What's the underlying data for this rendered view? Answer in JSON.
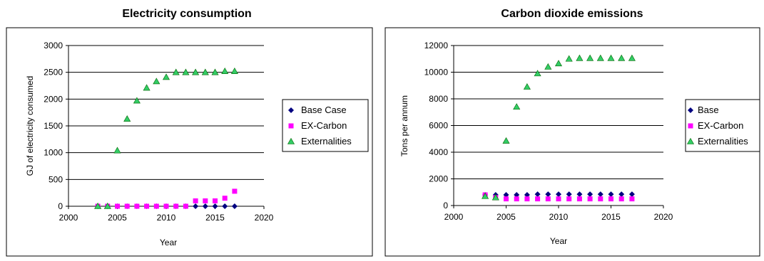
{
  "chart_data": [
    {
      "type": "scatter",
      "title": "Electricity consumption",
      "xlabel": "Year",
      "ylabel": "GJ of electricity consumed",
      "xlim": [
        2000,
        2020
      ],
      "ylim": [
        0,
        3000
      ],
      "xticks": [
        2000,
        2005,
        2010,
        2015,
        2020
      ],
      "yticks": [
        0,
        500,
        1000,
        1500,
        2000,
        2500,
        3000
      ],
      "grid": "horizontal",
      "legend": "right",
      "series": [
        {
          "name": "Base Case",
          "marker": "diamond",
          "color": "#000080",
          "x": [
            2003,
            2004,
            2005,
            2006,
            2007,
            2008,
            2009,
            2010,
            2011,
            2012,
            2013,
            2014,
            2015,
            2016,
            2017
          ],
          "y": [
            0,
            0,
            0,
            0,
            0,
            0,
            0,
            0,
            0,
            0,
            0,
            0,
            0,
            0,
            0
          ]
        },
        {
          "name": "EX-Carbon",
          "marker": "square",
          "color": "#FF00FF",
          "x": [
            2003,
            2004,
            2005,
            2006,
            2007,
            2008,
            2009,
            2010,
            2011,
            2012,
            2013,
            2014,
            2015,
            2016,
            2017
          ],
          "y": [
            0,
            0,
            0,
            0,
            0,
            0,
            0,
            0,
            0,
            0,
            100,
            100,
            100,
            150,
            280
          ]
        },
        {
          "name": "Externalities",
          "marker": "triangle",
          "color": "#33CC66",
          "x": [
            2003,
            2004,
            2005,
            2006,
            2007,
            2008,
            2009,
            2010,
            2011,
            2012,
            2013,
            2014,
            2015,
            2016,
            2017
          ],
          "y": [
            0,
            0,
            1040,
            1630,
            1970,
            2210,
            2330,
            2410,
            2500,
            2500,
            2500,
            2500,
            2500,
            2520,
            2520
          ]
        }
      ]
    },
    {
      "type": "scatter",
      "title": "Carbon dioxide emissions",
      "xlabel": "Year",
      "ylabel": "Tons per annum",
      "xlim": [
        2000,
        2020
      ],
      "ylim": [
        0,
        12000
      ],
      "xticks": [
        2000,
        2005,
        2010,
        2015,
        2020
      ],
      "yticks": [
        0,
        2000,
        4000,
        6000,
        8000,
        10000,
        12000
      ],
      "grid": "horizontal",
      "legend": "right",
      "series": [
        {
          "name": "Base",
          "marker": "diamond",
          "color": "#000080",
          "x": [
            2003,
            2004,
            2005,
            2006,
            2007,
            2008,
            2009,
            2010,
            2011,
            2012,
            2013,
            2014,
            2015,
            2016,
            2017
          ],
          "y": [
            800,
            800,
            800,
            800,
            800,
            850,
            850,
            850,
            850,
            850,
            850,
            850,
            850,
            850,
            850
          ]
        },
        {
          "name": "EX-Carbon",
          "marker": "square",
          "color": "#FF00FF",
          "x": [
            2003,
            2004,
            2005,
            2006,
            2007,
            2008,
            2009,
            2010,
            2011,
            2012,
            2013,
            2014,
            2015,
            2016,
            2017
          ],
          "y": [
            800,
            600,
            500,
            500,
            500,
            500,
            500,
            500,
            500,
            500,
            500,
            500,
            500,
            500,
            500
          ]
        },
        {
          "name": "Externalities",
          "marker": "triangle",
          "color": "#33CC66",
          "x": [
            2003,
            2004,
            2005,
            2006,
            2007,
            2008,
            2009,
            2010,
            2011,
            2012,
            2013,
            2014,
            2015,
            2016,
            2017
          ],
          "y": [
            700,
            600,
            4850,
            7400,
            8900,
            9900,
            10400,
            10650,
            11000,
            11050,
            11050,
            11050,
            11050,
            11050,
            11050
          ]
        }
      ]
    }
  ]
}
